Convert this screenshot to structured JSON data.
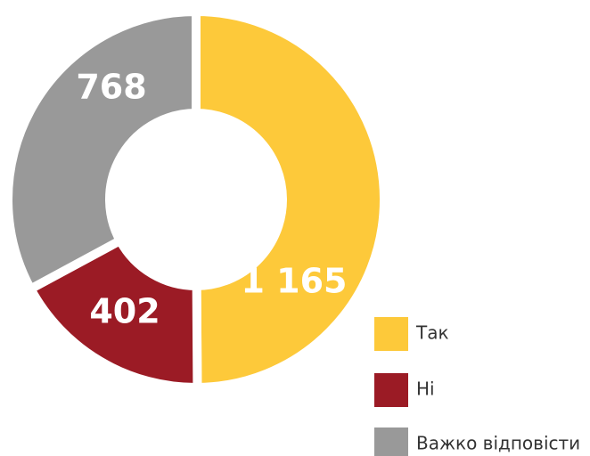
{
  "chart_data": {
    "type": "donut",
    "categories": [
      "Так",
      "Ні",
      "Важко відповісти"
    ],
    "values": [
      1165,
      402,
      768
    ],
    "value_labels": [
      "1 165",
      "402",
      "768"
    ],
    "colors": [
      "#fdc93a",
      "#9b1b25",
      "#999999"
    ],
    "legend": "bottom-right"
  }
}
